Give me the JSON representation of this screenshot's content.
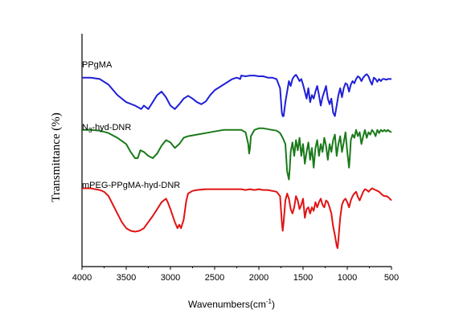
{
  "chart_data": {
    "type": "line",
    "xlabel": "Wavenumbers(cm",
    "xlabel_sup": "-1",
    "xlabel_end": ")",
    "ylabel": "Transmittance (%)",
    "xlim": [
      4000,
      500
    ],
    "x_ticks": [
      "4000",
      "3500",
      "3000",
      "2500",
      "2000",
      "1500",
      "1000",
      "500"
    ],
    "x_tick_values": [
      4000,
      3500,
      3000,
      2500,
      2000,
      1500,
      1000,
      500
    ],
    "grid": false,
    "series": [
      {
        "label_parts": [
          "PPgMA"
        ],
        "color": "#1f1fd8",
        "points": [
          [
            4000,
            90
          ],
          [
            3900,
            90
          ],
          [
            3800,
            88
          ],
          [
            3700,
            80
          ],
          [
            3600,
            65
          ],
          [
            3500,
            55
          ],
          [
            3400,
            50
          ],
          [
            3330,
            45
          ],
          [
            3300,
            50
          ],
          [
            3250,
            45
          ],
          [
            3200,
            55
          ],
          [
            3150,
            65
          ],
          [
            3100,
            70
          ],
          [
            3050,
            62
          ],
          [
            3000,
            50
          ],
          [
            2950,
            45
          ],
          [
            2900,
            52
          ],
          [
            2850,
            60
          ],
          [
            2800,
            64
          ],
          [
            2750,
            60
          ],
          [
            2700,
            55
          ],
          [
            2650,
            52
          ],
          [
            2600,
            56
          ],
          [
            2550,
            65
          ],
          [
            2500,
            72
          ],
          [
            2450,
            76
          ],
          [
            2400,
            80
          ],
          [
            2350,
            84
          ],
          [
            2300,
            88
          ],
          [
            2250,
            90
          ],
          [
            2210,
            88
          ],
          [
            2200,
            93
          ],
          [
            2150,
            92
          ],
          [
            2100,
            93
          ],
          [
            2050,
            93
          ],
          [
            2000,
            92
          ],
          [
            1950,
            92
          ],
          [
            1900,
            90
          ],
          [
            1850,
            90
          ],
          [
            1800,
            88
          ],
          [
            1760,
            75
          ],
          [
            1740,
            40
          ],
          [
            1730,
            35
          ],
          [
            1720,
            35
          ],
          [
            1700,
            55
          ],
          [
            1680,
            70
          ],
          [
            1660,
            85
          ],
          [
            1640,
            78
          ],
          [
            1620,
            88
          ],
          [
            1600,
            92
          ],
          [
            1580,
            94
          ],
          [
            1560,
            90
          ],
          [
            1540,
            85
          ],
          [
            1520,
            88
          ],
          [
            1500,
            80
          ],
          [
            1480,
            70
          ],
          [
            1460,
            60
          ],
          [
            1440,
            75
          ],
          [
            1420,
            55
          ],
          [
            1400,
            65
          ],
          [
            1380,
            60
          ],
          [
            1360,
            70
          ],
          [
            1340,
            78
          ],
          [
            1320,
            65
          ],
          [
            1300,
            50
          ],
          [
            1280,
            62
          ],
          [
            1260,
            70
          ],
          [
            1240,
            78
          ],
          [
            1220,
            60
          ],
          [
            1200,
            52
          ],
          [
            1180,
            60
          ],
          [
            1160,
            40
          ],
          [
            1140,
            35
          ],
          [
            1120,
            50
          ],
          [
            1100,
            65
          ],
          [
            1080,
            75
          ],
          [
            1060,
            62
          ],
          [
            1040,
            75
          ],
          [
            1020,
            82
          ],
          [
            1000,
            80
          ],
          [
            980,
            70
          ],
          [
            960,
            80
          ],
          [
            940,
            85
          ],
          [
            920,
            82
          ],
          [
            900,
            88
          ],
          [
            880,
            92
          ],
          [
            860,
            90
          ],
          [
            840,
            85
          ],
          [
            820,
            90
          ],
          [
            800,
            93
          ],
          [
            780,
            95
          ],
          [
            760,
            92
          ],
          [
            740,
            85
          ],
          [
            720,
            80
          ],
          [
            700,
            90
          ],
          [
            680,
            88
          ],
          [
            660,
            84
          ],
          [
            640,
            88
          ],
          [
            620,
            85
          ],
          [
            600,
            88
          ],
          [
            580,
            88
          ],
          [
            560,
            87
          ],
          [
            540,
            88
          ],
          [
            520,
            88
          ],
          [
            500,
            88
          ]
        ]
      },
      {
        "label_parts": [
          "N",
          "3",
          "-hyd-DNR"
        ],
        "color": "#1a7a1a",
        "points": [
          [
            4000,
            88
          ],
          [
            3900,
            88
          ],
          [
            3800,
            87
          ],
          [
            3700,
            84
          ],
          [
            3600,
            78
          ],
          [
            3500,
            70
          ],
          [
            3450,
            60
          ],
          [
            3400,
            52
          ],
          [
            3370,
            52
          ],
          [
            3340,
            62
          ],
          [
            3300,
            60
          ],
          [
            3250,
            55
          ],
          [
            3200,
            52
          ],
          [
            3150,
            58
          ],
          [
            3100,
            68
          ],
          [
            3050,
            75
          ],
          [
            3000,
            72
          ],
          [
            2950,
            65
          ],
          [
            2900,
            70
          ],
          [
            2850,
            78
          ],
          [
            2800,
            80
          ],
          [
            2700,
            82
          ],
          [
            2600,
            84
          ],
          [
            2500,
            86
          ],
          [
            2400,
            88
          ],
          [
            2300,
            88
          ],
          [
            2200,
            88
          ],
          [
            2150,
            85
          ],
          [
            2120,
            70
          ],
          [
            2110,
            58
          ],
          [
            2100,
            65
          ],
          [
            2090,
            80
          ],
          [
            2050,
            88
          ],
          [
            2000,
            90
          ],
          [
            1950,
            90
          ],
          [
            1900,
            89
          ],
          [
            1850,
            88
          ],
          [
            1800,
            87
          ],
          [
            1760,
            84
          ],
          [
            1730,
            78
          ],
          [
            1700,
            70
          ],
          [
            1680,
            35
          ],
          [
            1670,
            30
          ],
          [
            1660,
            25
          ],
          [
            1650,
            40
          ],
          [
            1640,
            60
          ],
          [
            1620,
            72
          ],
          [
            1600,
            55
          ],
          [
            1580,
            75
          ],
          [
            1560,
            62
          ],
          [
            1540,
            78
          ],
          [
            1520,
            55
          ],
          [
            1500,
            70
          ],
          [
            1480,
            45
          ],
          [
            1460,
            60
          ],
          [
            1440,
            72
          ],
          [
            1420,
            50
          ],
          [
            1400,
            65
          ],
          [
            1380,
            40
          ],
          [
            1360,
            65
          ],
          [
            1340,
            75
          ],
          [
            1320,
            55
          ],
          [
            1300,
            70
          ],
          [
            1280,
            60
          ],
          [
            1260,
            78
          ],
          [
            1240,
            68
          ],
          [
            1220,
            50
          ],
          [
            1200,
            70
          ],
          [
            1180,
            60
          ],
          [
            1160,
            75
          ],
          [
            1140,
            82
          ],
          [
            1120,
            55
          ],
          [
            1100,
            70
          ],
          [
            1080,
            80
          ],
          [
            1060,
            60
          ],
          [
            1040,
            72
          ],
          [
            1020,
            85
          ],
          [
            1000,
            60
          ],
          [
            980,
            40
          ],
          [
            970,
            55
          ],
          [
            960,
            75
          ],
          [
            940,
            82
          ],
          [
            920,
            78
          ],
          [
            900,
            88
          ],
          [
            880,
            80
          ],
          [
            860,
            85
          ],
          [
            840,
            70
          ],
          [
            820,
            80
          ],
          [
            800,
            88
          ],
          [
            780,
            78
          ],
          [
            760,
            85
          ],
          [
            740,
            82
          ],
          [
            720,
            88
          ],
          [
            700,
            85
          ],
          [
            680,
            80
          ],
          [
            660,
            88
          ],
          [
            640,
            84
          ],
          [
            620,
            88
          ],
          [
            600,
            86
          ],
          [
            580,
            88
          ],
          [
            560,
            86
          ],
          [
            540,
            88
          ],
          [
            520,
            86
          ],
          [
            500,
            85
          ]
        ]
      },
      {
        "label_parts": [
          "mPEG-PPgMA-hyd-DNR"
        ],
        "color": "#e01414",
        "points": [
          [
            4000,
            94
          ],
          [
            3900,
            94
          ],
          [
            3850,
            93
          ],
          [
            3800,
            92
          ],
          [
            3750,
            90
          ],
          [
            3700,
            85
          ],
          [
            3650,
            75
          ],
          [
            3600,
            65
          ],
          [
            3550,
            55
          ],
          [
            3500,
            48
          ],
          [
            3450,
            45
          ],
          [
            3400,
            44
          ],
          [
            3350,
            45
          ],
          [
            3300,
            48
          ],
          [
            3250,
            55
          ],
          [
            3200,
            62
          ],
          [
            3150,
            70
          ],
          [
            3100,
            78
          ],
          [
            3050,
            82
          ],
          [
            3030,
            78
          ],
          [
            3000,
            70
          ],
          [
            2950,
            55
          ],
          [
            2920,
            48
          ],
          [
            2900,
            52
          ],
          [
            2880,
            48
          ],
          [
            2850,
            58
          ],
          [
            2820,
            80
          ],
          [
            2800,
            88
          ],
          [
            2750,
            91
          ],
          [
            2700,
            92
          ],
          [
            2600,
            93
          ],
          [
            2500,
            93
          ],
          [
            2400,
            93
          ],
          [
            2300,
            93
          ],
          [
            2200,
            93
          ],
          [
            2150,
            92
          ],
          [
            2100,
            93
          ],
          [
            2050,
            92
          ],
          [
            2000,
            93
          ],
          [
            1950,
            92
          ],
          [
            1900,
            92
          ],
          [
            1850,
            91
          ],
          [
            1800,
            90
          ],
          [
            1760,
            85
          ],
          [
            1740,
            55
          ],
          [
            1730,
            45
          ],
          [
            1720,
            55
          ],
          [
            1700,
            80
          ],
          [
            1680,
            88
          ],
          [
            1660,
            82
          ],
          [
            1640,
            70
          ],
          [
            1620,
            65
          ],
          [
            1600,
            72
          ],
          [
            1580,
            85
          ],
          [
            1560,
            80
          ],
          [
            1540,
            70
          ],
          [
            1520,
            75
          ],
          [
            1500,
            82
          ],
          [
            1480,
            60
          ],
          [
            1460,
            70
          ],
          [
            1440,
            72
          ],
          [
            1420,
            65
          ],
          [
            1400,
            72
          ],
          [
            1380,
            68
          ],
          [
            1360,
            78
          ],
          [
            1340,
            72
          ],
          [
            1320,
            78
          ],
          [
            1300,
            82
          ],
          [
            1280,
            75
          ],
          [
            1260,
            72
          ],
          [
            1240,
            80
          ],
          [
            1220,
            78
          ],
          [
            1200,
            72
          ],
          [
            1180,
            65
          ],
          [
            1160,
            50
          ],
          [
            1140,
            40
          ],
          [
            1120,
            28
          ],
          [
            1110,
            25
          ],
          [
            1100,
            35
          ],
          [
            1080,
            60
          ],
          [
            1060,
            75
          ],
          [
            1040,
            80
          ],
          [
            1020,
            82
          ],
          [
            1000,
            78
          ],
          [
            980,
            72
          ],
          [
            960,
            80
          ],
          [
            940,
            85
          ],
          [
            920,
            88
          ],
          [
            900,
            90
          ],
          [
            880,
            84
          ],
          [
            860,
            80
          ],
          [
            840,
            85
          ],
          [
            820,
            90
          ],
          [
            800,
            93
          ],
          [
            780,
            92
          ],
          [
            760,
            90
          ],
          [
            740,
            92
          ],
          [
            720,
            94
          ],
          [
            700,
            93
          ],
          [
            680,
            92
          ],
          [
            660,
            91
          ],
          [
            640,
            90
          ],
          [
            620,
            88
          ],
          [
            600,
            86
          ],
          [
            580,
            85
          ],
          [
            560,
            85
          ],
          [
            540,
            84
          ],
          [
            520,
            82
          ],
          [
            500,
            80
          ]
        ]
      }
    ]
  }
}
